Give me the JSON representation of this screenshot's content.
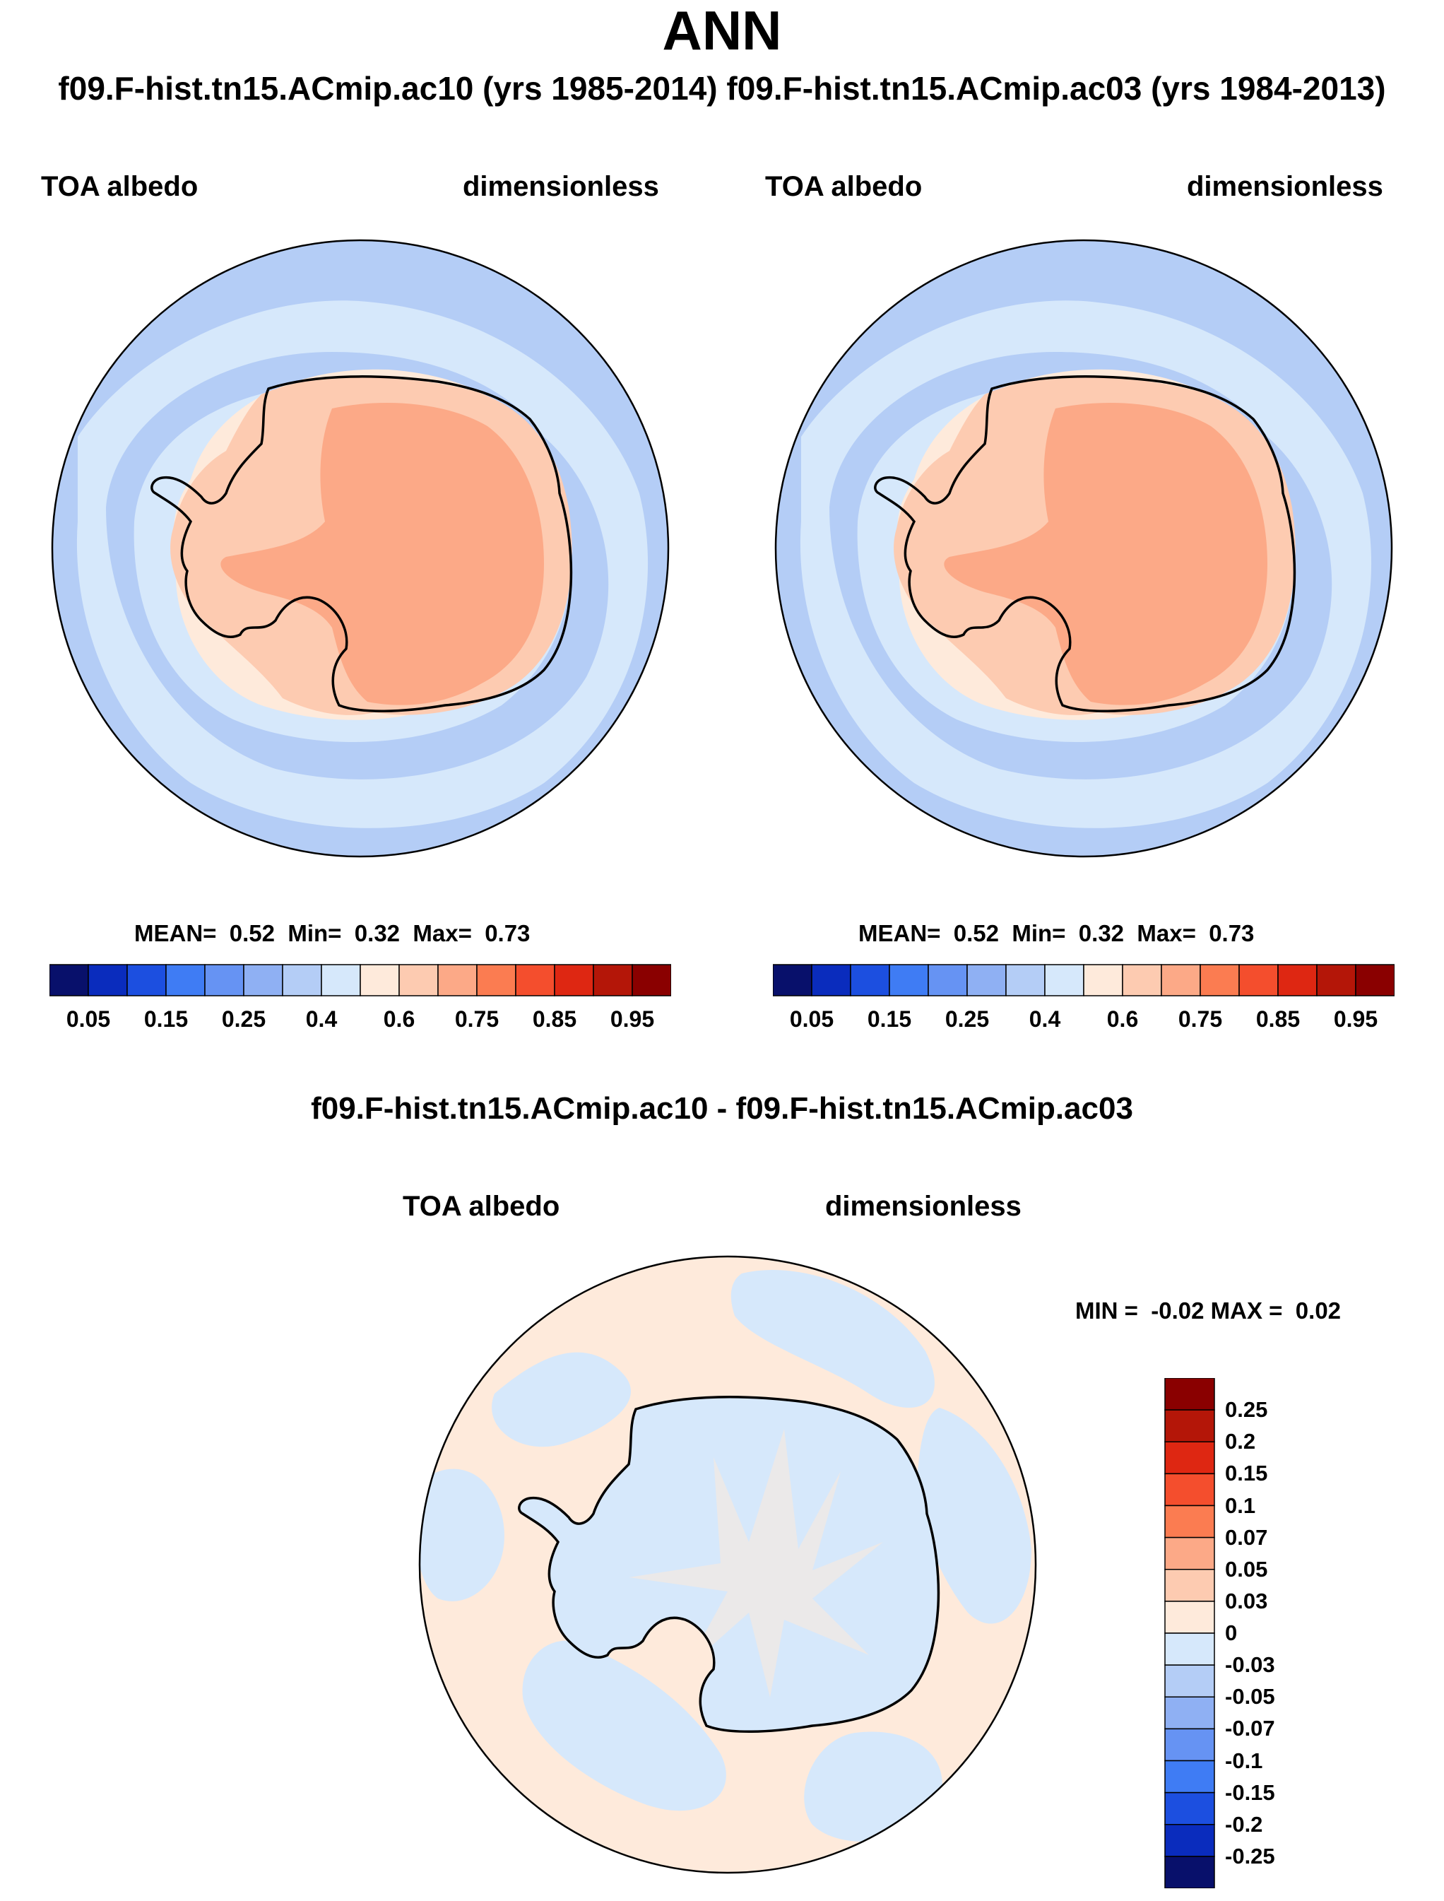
{
  "title": "ANN",
  "subtitle": "f09.F-hist.tn15.ACmip.ac10 (yrs 1985-2014) f09.F-hist.tn15.ACmip.ac03 (yrs 1984-2013)",
  "colors": {
    "abs_scale": [
      "#08106b",
      "#0a2cbd",
      "#1c4fe0",
      "#3f7cf4",
      "#6693f3",
      "#8fb0f3",
      "#b4cdf6",
      "#d6e8fb",
      "#feeadb",
      "#fdcbb1",
      "#fca987",
      "#fb7c51",
      "#f44e2d",
      "#de2712",
      "#b41608",
      "#8a0000"
    ],
    "diff_scale": [
      "#08106b",
      "#0a2cbd",
      "#1c4fe0",
      "#3f7cf4",
      "#6693f3",
      "#8fb0f3",
      "#b4cdf6",
      "#d6e8fb",
      "#feeadb",
      "#fdcbb1",
      "#fca987",
      "#fb7c51",
      "#f44e2d",
      "#de2712",
      "#b41608",
      "#8a0000"
    ]
  },
  "chart_data": [
    {
      "type": "heatmap",
      "projection": "south polar stereographic",
      "case": "f09.F-hist.tn15.ACmip.ac10 (yrs 1985-2014)",
      "title": "TOA albedo",
      "units": "dimensionless",
      "mean": "0.52",
      "min": "0.32",
      "max": "0.73",
      "stats_labels": [
        "MEAN=",
        "Min=",
        "Max="
      ],
      "colorbar_ticks": [
        "0.05",
        "0.15",
        "0.25",
        "0.4",
        "0.6",
        "0.75",
        "0.85",
        "0.95"
      ]
    },
    {
      "type": "heatmap",
      "projection": "south polar stereographic",
      "case": "f09.F-hist.tn15.ACmip.ac03 (yrs 1984-2013)",
      "title": "TOA albedo",
      "units": "dimensionless",
      "mean": "0.52",
      "min": "0.32",
      "max": "0.73",
      "stats_labels": [
        "MEAN=",
        "Min=",
        "Max="
      ],
      "colorbar_ticks": [
        "0.05",
        "0.15",
        "0.25",
        "0.4",
        "0.6",
        "0.75",
        "0.85",
        "0.95"
      ]
    },
    {
      "type": "heatmap",
      "projection": "south polar stereographic",
      "diff_title": "f09.F-hist.tn15.ACmip.ac10 - f09.F-hist.tn15.ACmip.ac03",
      "title": "TOA albedo",
      "units": "dimensionless",
      "min_label": "MIN =",
      "min": "-0.02",
      "max_label": "MAX =",
      "max": "0.02",
      "colorbar_ticks": [
        "0.25",
        "0.2",
        "0.15",
        "0.1",
        "0.07",
        "0.05",
        "0.03",
        "0",
        "-0.03",
        "-0.05",
        "-0.07",
        "-0.1",
        "-0.15",
        "-0.2",
        "-0.25"
      ]
    }
  ]
}
